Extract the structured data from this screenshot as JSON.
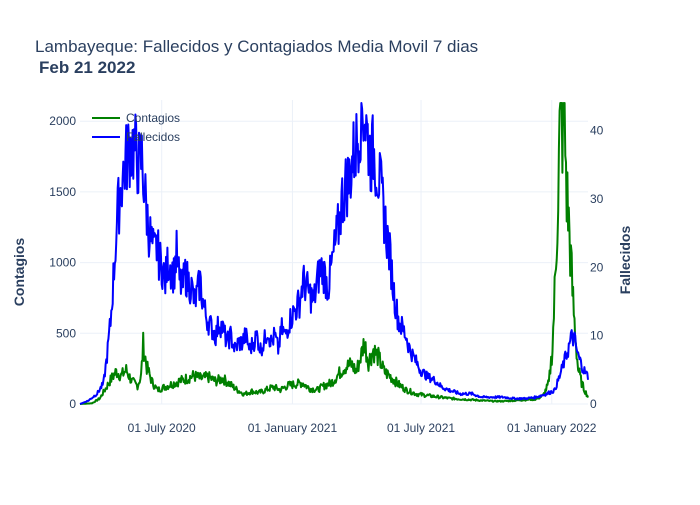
{
  "chart_data": {
    "type": "line",
    "title": "Lambayeque: Fallecidos y Contagiados Media Movil 7 dias",
    "subtitle": "Feb 21 2022",
    "ylabel_left": "Contagios",
    "ylabel_right": "Fallecidos",
    "ylim_left": [
      0,
      2150
    ],
    "ylim_right": [
      0,
      44.5
    ],
    "xlim": [
      "2020-03-08",
      "2022-02-21"
    ],
    "grid": true,
    "legend_position": "top-left",
    "x_ticks": [
      {
        "date": "2020-07-01",
        "label": "01 July 2020"
      },
      {
        "date": "2021-01-01",
        "label": "01 January 2021"
      },
      {
        "date": "2021-07-01",
        "label": "01 July 2021"
      },
      {
        "date": "2022-01-01",
        "label": "01 January 2022"
      }
    ],
    "y_ticks_left": [
      0,
      500,
      1000,
      1500,
      2000
    ],
    "y_ticks_right": [
      0,
      10,
      20,
      30,
      40
    ],
    "series": [
      {
        "name": "Contagios",
        "axis": "left",
        "color": "#008000",
        "points": [
          [
            "2020-03-08",
            0
          ],
          [
            "2020-03-25",
            5
          ],
          [
            "2020-04-05",
            40
          ],
          [
            "2020-04-12",
            100
          ],
          [
            "2020-04-20",
            170
          ],
          [
            "2020-04-28",
            230
          ],
          [
            "2020-05-05",
            200
          ],
          [
            "2020-05-12",
            240
          ],
          [
            "2020-05-20",
            160
          ],
          [
            "2020-05-28",
            130
          ],
          [
            "2020-06-02",
            200
          ],
          [
            "2020-06-05",
            420
          ],
          [
            "2020-06-10",
            260
          ],
          [
            "2020-06-18",
            150
          ],
          [
            "2020-06-25",
            100
          ],
          [
            "2020-07-05",
            120
          ],
          [
            "2020-07-15",
            140
          ],
          [
            "2020-07-25",
            160
          ],
          [
            "2020-08-05",
            180
          ],
          [
            "2020-08-15",
            200
          ],
          [
            "2020-08-25",
            180
          ],
          [
            "2020-09-05",
            190
          ],
          [
            "2020-09-15",
            160
          ],
          [
            "2020-09-25",
            180
          ],
          [
            "2020-10-05",
            140
          ],
          [
            "2020-10-15",
            100
          ],
          [
            "2020-10-25",
            70
          ],
          [
            "2020-11-05",
            90
          ],
          [
            "2020-11-15",
            80
          ],
          [
            "2020-11-25",
            100
          ],
          [
            "2020-12-05",
            120
          ],
          [
            "2020-12-15",
            100
          ],
          [
            "2020-12-25",
            130
          ],
          [
            "2021-01-05",
            140
          ],
          [
            "2021-01-15",
            150
          ],
          [
            "2021-01-25",
            110
          ],
          [
            "2021-02-05",
            100
          ],
          [
            "2021-02-15",
            130
          ],
          [
            "2021-02-25",
            150
          ],
          [
            "2021-03-05",
            200
          ],
          [
            "2021-03-15",
            260
          ],
          [
            "2021-03-25",
            280
          ],
          [
            "2021-04-01",
            230
          ],
          [
            "2021-04-08",
            350
          ],
          [
            "2021-04-12",
            440
          ],
          [
            "2021-04-18",
            300
          ],
          [
            "2021-04-25",
            380
          ],
          [
            "2021-05-02",
            330
          ],
          [
            "2021-05-10",
            230
          ],
          [
            "2021-05-20",
            190
          ],
          [
            "2021-05-30",
            140
          ],
          [
            "2021-06-10",
            100
          ],
          [
            "2021-06-25",
            70
          ],
          [
            "2021-07-10",
            60
          ],
          [
            "2021-07-25",
            50
          ],
          [
            "2021-08-10",
            40
          ],
          [
            "2021-08-25",
            35
          ],
          [
            "2021-09-10",
            30
          ],
          [
            "2021-09-25",
            25
          ],
          [
            "2021-10-10",
            20
          ],
          [
            "2021-10-25",
            20
          ],
          [
            "2021-11-10",
            25
          ],
          [
            "2021-11-25",
            30
          ],
          [
            "2021-12-10",
            35
          ],
          [
            "2021-12-20",
            60
          ],
          [
            "2021-12-28",
            150
          ],
          [
            "2022-01-02",
            400
          ],
          [
            "2022-01-06",
            900
          ],
          [
            "2022-01-10",
            1500
          ],
          [
            "2022-01-13",
            2100
          ],
          [
            "2022-01-16",
            1950
          ],
          [
            "2022-01-19",
            1980
          ],
          [
            "2022-01-22",
            1500
          ],
          [
            "2022-01-26",
            1200
          ],
          [
            "2022-01-30",
            800
          ],
          [
            "2022-02-03",
            500
          ],
          [
            "2022-02-07",
            250
          ],
          [
            "2022-02-12",
            150
          ],
          [
            "2022-02-16",
            100
          ],
          [
            "2022-02-21",
            50
          ]
        ]
      },
      {
        "name": "Fallecidos",
        "axis": "right",
        "color": "#0000ff",
        "points": [
          [
            "2020-03-08",
            0
          ],
          [
            "2020-03-20",
            0.5
          ],
          [
            "2020-04-01",
            1.5
          ],
          [
            "2020-04-10",
            3
          ],
          [
            "2020-04-15",
            7
          ],
          [
            "2020-04-20",
            12
          ],
          [
            "2020-04-25",
            20
          ],
          [
            "2020-04-30",
            28
          ],
          [
            "2020-05-05",
            32
          ],
          [
            "2020-05-10",
            35
          ],
          [
            "2020-05-15",
            37
          ],
          [
            "2020-05-20",
            38
          ],
          [
            "2020-05-25",
            37
          ],
          [
            "2020-05-30",
            35
          ],
          [
            "2020-06-03",
            36
          ],
          [
            "2020-06-08",
            30
          ],
          [
            "2020-06-12",
            26
          ],
          [
            "2020-06-16",
            24
          ],
          [
            "2020-06-20",
            22
          ],
          [
            "2020-06-24",
            23
          ],
          [
            "2020-06-28",
            21
          ],
          [
            "2020-07-02",
            20
          ],
          [
            "2020-07-06",
            18
          ],
          [
            "2020-07-10",
            21
          ],
          [
            "2020-07-14",
            20
          ],
          [
            "2020-07-18",
            19
          ],
          [
            "2020-07-22",
            22
          ],
          [
            "2020-07-26",
            18
          ],
          [
            "2020-07-30",
            17
          ],
          [
            "2020-08-03",
            19
          ],
          [
            "2020-08-07",
            18
          ],
          [
            "2020-08-12",
            17
          ],
          [
            "2020-08-16",
            15
          ],
          [
            "2020-08-20",
            16
          ],
          [
            "2020-08-24",
            18
          ],
          [
            "2020-08-28",
            15
          ],
          [
            "2020-09-01",
            13
          ],
          [
            "2020-09-05",
            12
          ],
          [
            "2020-09-10",
            11
          ],
          [
            "2020-09-15",
            10
          ],
          [
            "2020-09-20",
            12
          ],
          [
            "2020-09-25",
            11
          ],
          [
            "2020-10-01",
            9
          ],
          [
            "2020-10-06",
            10
          ],
          [
            "2020-10-12",
            8
          ],
          [
            "2020-10-17",
            9
          ],
          [
            "2020-10-22",
            9
          ],
          [
            "2020-10-27",
            10
          ],
          [
            "2020-11-02",
            8
          ],
          [
            "2020-11-07",
            9
          ],
          [
            "2020-11-12",
            10
          ],
          [
            "2020-11-17",
            8
          ],
          [
            "2020-11-22",
            9
          ],
          [
            "2020-11-27",
            11
          ],
          [
            "2020-12-02",
            9
          ],
          [
            "2020-12-07",
            10
          ],
          [
            "2020-12-12",
            8
          ],
          [
            "2020-12-17",
            11
          ],
          [
            "2020-12-22",
            10
          ],
          [
            "2020-12-27",
            12
          ],
          [
            "2021-01-01",
            13
          ],
          [
            "2021-01-06",
            14
          ],
          [
            "2021-01-11",
            15
          ],
          [
            "2021-01-16",
            18
          ],
          [
            "2021-01-21",
            17
          ],
          [
            "2021-01-26",
            16
          ],
          [
            "2021-01-31",
            15
          ],
          [
            "2021-02-05",
            18
          ],
          [
            "2021-02-10",
            20
          ],
          [
            "2021-02-15",
            19
          ],
          [
            "2021-02-20",
            17
          ],
          [
            "2021-02-25",
            20
          ],
          [
            "2021-03-02",
            23
          ],
          [
            "2021-03-07",
            26
          ],
          [
            "2021-03-12",
            30
          ],
          [
            "2021-03-17",
            32
          ],
          [
            "2021-03-22",
            33
          ],
          [
            "2021-03-27",
            36
          ],
          [
            "2021-04-01",
            38
          ],
          [
            "2021-04-05",
            41
          ],
          [
            "2021-04-09",
            43
          ],
          [
            "2021-04-13",
            42
          ],
          [
            "2021-04-17",
            39
          ],
          [
            "2021-04-21",
            36
          ],
          [
            "2021-04-25",
            37
          ],
          [
            "2021-04-29",
            35
          ],
          [
            "2021-05-03",
            33
          ],
          [
            "2021-05-07",
            30
          ],
          [
            "2021-05-11",
            27
          ],
          [
            "2021-05-15",
            24
          ],
          [
            "2021-05-19",
            21
          ],
          [
            "2021-05-23",
            17
          ],
          [
            "2021-05-27",
            14
          ],
          [
            "2021-05-31",
            12
          ],
          [
            "2021-06-05",
            11
          ],
          [
            "2021-06-10",
            10
          ],
          [
            "2021-06-15",
            8
          ],
          [
            "2021-06-20",
            7
          ],
          [
            "2021-06-25",
            6
          ],
          [
            "2021-06-30",
            5
          ],
          [
            "2021-07-10",
            4
          ],
          [
            "2021-07-20",
            3.5
          ],
          [
            "2021-07-30",
            2.5
          ],
          [
            "2021-08-10",
            2
          ],
          [
            "2021-08-25",
            1.5
          ],
          [
            "2021-09-10",
            1.5
          ],
          [
            "2021-09-25",
            1
          ],
          [
            "2021-10-10",
            1
          ],
          [
            "2021-10-25",
            1
          ],
          [
            "2021-11-10",
            0.8
          ],
          [
            "2021-11-25",
            0.8
          ],
          [
            "2021-12-10",
            1
          ],
          [
            "2021-12-25",
            1.5
          ],
          [
            "2022-01-05",
            2
          ],
          [
            "2022-01-12",
            4
          ],
          [
            "2022-01-18",
            6
          ],
          [
            "2022-01-24",
            8
          ],
          [
            "2022-01-30",
            10
          ],
          [
            "2022-02-03",
            9
          ],
          [
            "2022-02-07",
            7
          ],
          [
            "2022-02-11",
            6
          ],
          [
            "2022-02-15",
            5
          ],
          [
            "2022-02-21",
            4
          ]
        ]
      }
    ]
  }
}
